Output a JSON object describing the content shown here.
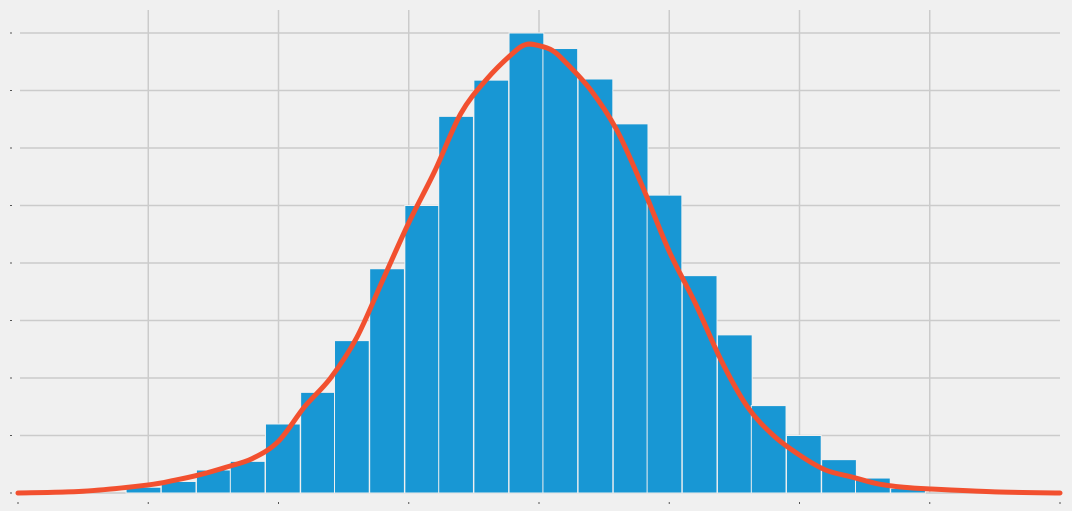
{
  "chart_data": {
    "type": "bar",
    "subtype": "histogram-with-density-curve",
    "title": "",
    "xlabel": "",
    "ylabel": "",
    "tick_labels_visible": false,
    "x_gridlines": [
      -3,
      -2,
      -1,
      0,
      1,
      2,
      3
    ],
    "xlim": [
      -4,
      4
    ],
    "ylim": [
      0,
      0.8
    ],
    "y_gridlines": [
      0.0,
      0.1,
      0.2,
      0.3,
      0.4,
      0.5,
      0.6,
      0.7,
      0.8
    ],
    "bin_width": 0.2667,
    "bin_starts": [
      -3.17,
      -2.9,
      -2.63,
      -2.37,
      -2.1,
      -1.83,
      -1.57,
      -1.3,
      -1.03,
      -0.77,
      -0.5,
      -0.23,
      0.03,
      0.3,
      0.57,
      0.83,
      1.1,
      1.37,
      1.63,
      1.9,
      2.17,
      2.43,
      2.7
    ],
    "bin_values": [
      0.01,
      0.02,
      0.04,
      0.055,
      0.12,
      0.175,
      0.265,
      0.39,
      0.5,
      0.655,
      0.718,
      0.8,
      0.773,
      0.72,
      0.642,
      0.518,
      0.378,
      0.275,
      0.152,
      0.1,
      0.058,
      0.026,
      0.008
    ],
    "density_x": [
      -4.0,
      -3.5,
      -3.0,
      -2.8,
      -2.6,
      -2.4,
      -2.2,
      -2.0,
      -1.8,
      -1.6,
      -1.4,
      -1.2,
      -1.0,
      -0.8,
      -0.6,
      -0.4,
      -0.2,
      -0.1,
      0.0,
      0.1,
      0.2,
      0.4,
      0.6,
      0.8,
      1.0,
      1.2,
      1.4,
      1.6,
      1.8,
      2.0,
      2.2,
      2.4,
      2.6,
      2.8,
      3.0,
      3.5,
      4.0
    ],
    "density_y": [
      0.0,
      0.003,
      0.014,
      0.022,
      0.032,
      0.045,
      0.06,
      0.09,
      0.15,
      0.2,
      0.27,
      0.37,
      0.47,
      0.56,
      0.66,
      0.72,
      0.765,
      0.78,
      0.778,
      0.77,
      0.75,
      0.7,
      0.63,
      0.53,
      0.42,
      0.33,
      0.23,
      0.15,
      0.1,
      0.066,
      0.04,
      0.028,
      0.016,
      0.01,
      0.007,
      0.002,
      0.0
    ],
    "colors": {
      "bars": "#1897d4",
      "density": "#f2502f",
      "background": "#f0f0f0",
      "grid": "#cbcbcb"
    }
  }
}
